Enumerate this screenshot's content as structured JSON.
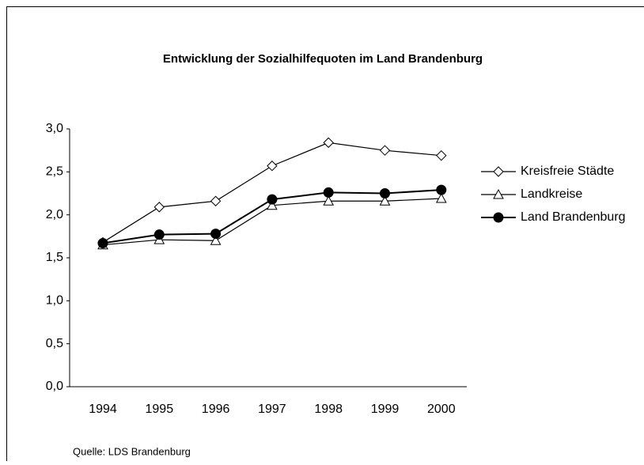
{
  "chart_data": {
    "type": "line",
    "title": "Entwicklung der Sozialhilfequoten im Land Brandenburg",
    "source": "Quelle: LDS Brandenburg",
    "categories": [
      "1994",
      "1995",
      "1996",
      "1997",
      "1998",
      "1999",
      "2000"
    ],
    "series": [
      {
        "name": "Kreisfreie Städte",
        "color": "#000000",
        "marker": "diamond",
        "values": [
          1.68,
          2.09,
          2.16,
          2.57,
          2.84,
          2.75,
          2.69
        ]
      },
      {
        "name": "Landkreise",
        "color": "#000000",
        "marker": "triangle",
        "values": [
          1.65,
          1.71,
          1.7,
          2.11,
          2.16,
          2.16,
          2.19
        ]
      },
      {
        "name": "Land Brandenburg",
        "color": "#000000",
        "marker": "circle",
        "values": [
          1.67,
          1.77,
          1.78,
          2.18,
          2.26,
          2.25,
          2.29
        ]
      }
    ],
    "ylim": [
      0,
      3
    ],
    "yticks": [
      {
        "value": 0,
        "label": "0,0"
      },
      {
        "value": 0.5,
        "label": "0,5"
      },
      {
        "value": 1,
        "label": "1,0"
      },
      {
        "value": 1.5,
        "label": "1,5"
      },
      {
        "value": 2,
        "label": "2,0"
      },
      {
        "value": 2.5,
        "label": "2,5"
      },
      {
        "value": 3,
        "label": "3,0"
      }
    ],
    "legend": "right"
  }
}
